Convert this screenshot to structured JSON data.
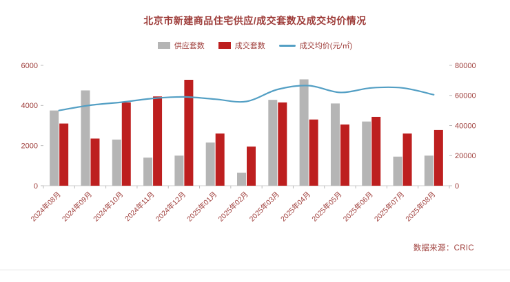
{
  "chart": {
    "title": "北京市新建商品住宅供应/成交套数及成交均价情况",
    "source": "数据来源：CRIC"
  },
  "chart_data": {
    "type": "bar+line combo",
    "categories": [
      "2024年08月",
      "2024年09月",
      "2024年10月",
      "2024年11月",
      "2024年12月",
      "2025年01月",
      "2025年02月",
      "2025年03月",
      "2025年04月",
      "2025年05月",
      "2025年06月",
      "2025年07月",
      "2025年08月"
    ],
    "series": [
      {
        "name": "供应套数",
        "type": "bar",
        "axis": "left",
        "color": "#b5b5b5",
        "values": [
          3750,
          4750,
          2300,
          1400,
          1500,
          2150,
          650,
          4280,
          5300,
          4100,
          3200,
          1450,
          1500
        ]
      },
      {
        "name": "成交套数",
        "type": "bar",
        "axis": "left",
        "color": "#bd1f1f",
        "values": [
          3100,
          2350,
          4150,
          4450,
          5280,
          2600,
          1950,
          4150,
          3300,
          3050,
          3430,
          2600,
          2780
        ]
      },
      {
        "name": "成交均价(元/㎡)",
        "type": "line",
        "axis": "right",
        "color": "#539fc4",
        "values": [
          50000,
          53500,
          55500,
          58000,
          59000,
          57500,
          56000,
          64000,
          66500,
          62000,
          65000,
          65000,
          60500
        ]
      }
    ],
    "left_axis": {
      "min": 0,
      "max": 6000,
      "ticks": [
        0,
        2000,
        4000,
        6000
      ]
    },
    "right_axis": {
      "min": 0,
      "max": 80000,
      "ticks": [
        0,
        20000,
        40000,
        60000,
        80000
      ]
    },
    "legend_position": "top",
    "grid": false,
    "palette": {
      "text": "#9e3d3a",
      "axis_line": "#cccccc",
      "tick_mark": "#bbbbbb",
      "divider": "#e4e4e4"
    }
  }
}
